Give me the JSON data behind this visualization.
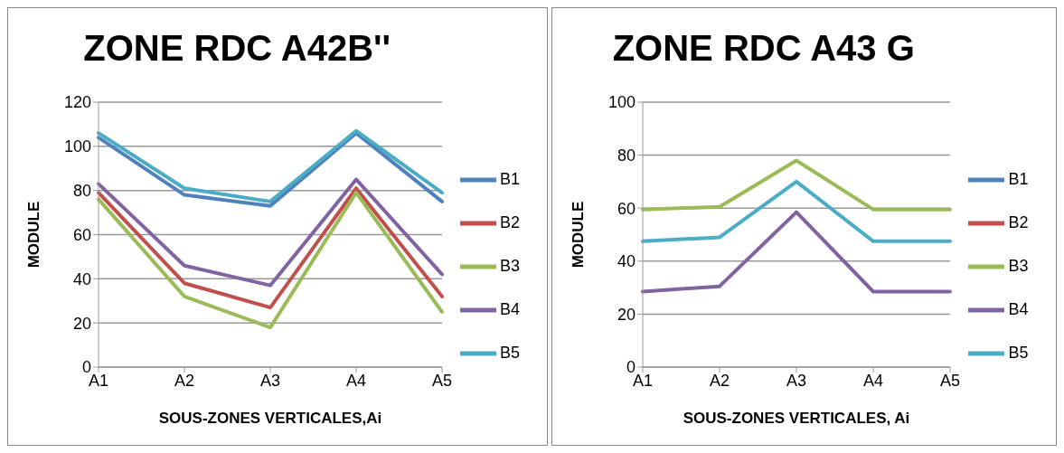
{
  "chart_data": [
    {
      "type": "line",
      "title": "ZONE RDC A42B''",
      "xlabel": "SOUS-ZONES VERTICALES,Ai",
      "ylabel": "MODULE",
      "categories": [
        "A1",
        "A2",
        "A3",
        "A4",
        "A5"
      ],
      "ylim": [
        0,
        120
      ],
      "yticks": [
        0,
        20,
        40,
        60,
        80,
        100,
        120
      ],
      "grid": "y",
      "legend": "right",
      "marker": "none",
      "line_style": "solid",
      "series": [
        {
          "name": "B1",
          "color": "#4f81bd",
          "values": [
            104,
            78,
            73,
            106,
            75
          ]
        },
        {
          "name": "B2",
          "color": "#c0504d",
          "values": [
            79,
            38,
            27,
            81,
            32
          ]
        },
        {
          "name": "B3",
          "color": "#9bbb59",
          "values": [
            76,
            32,
            18,
            79,
            25
          ]
        },
        {
          "name": "B4",
          "color": "#8064a2",
          "values": [
            83,
            46,
            37,
            85,
            42
          ]
        },
        {
          "name": "B5",
          "color": "#4bacc6",
          "values": [
            106,
            81,
            75,
            107,
            79
          ]
        }
      ]
    },
    {
      "type": "line",
      "title": "ZONE RDC A43 G",
      "xlabel": "SOUS-ZONES VERTICALES, Ai",
      "ylabel": "MODULE",
      "categories": [
        "A1",
        "A2",
        "A3",
        "A4",
        "A5"
      ],
      "ylim": [
        0,
        100
      ],
      "yticks": [
        0,
        20,
        40,
        60,
        80,
        100
      ],
      "grid": "y",
      "legend": "right",
      "marker": "none",
      "line_style": "solid",
      "series": [
        {
          "name": "B1",
          "color": "#4f81bd",
          "values": [
            null,
            null,
            null,
            null,
            null
          ]
        },
        {
          "name": "B2",
          "color": "#c0504d",
          "values": [
            null,
            null,
            null,
            null,
            null
          ]
        },
        {
          "name": "B3",
          "color": "#9bbb59",
          "values": [
            59.5,
            60.5,
            78,
            59.5,
            59.5
          ]
        },
        {
          "name": "B4",
          "color": "#8064a2",
          "values": [
            28.5,
            30.5,
            58.5,
            28.5,
            28.5
          ]
        },
        {
          "name": "B5",
          "color": "#4bacc6",
          "values": [
            47.5,
            49,
            70,
            47.5,
            47.5
          ]
        }
      ]
    }
  ]
}
